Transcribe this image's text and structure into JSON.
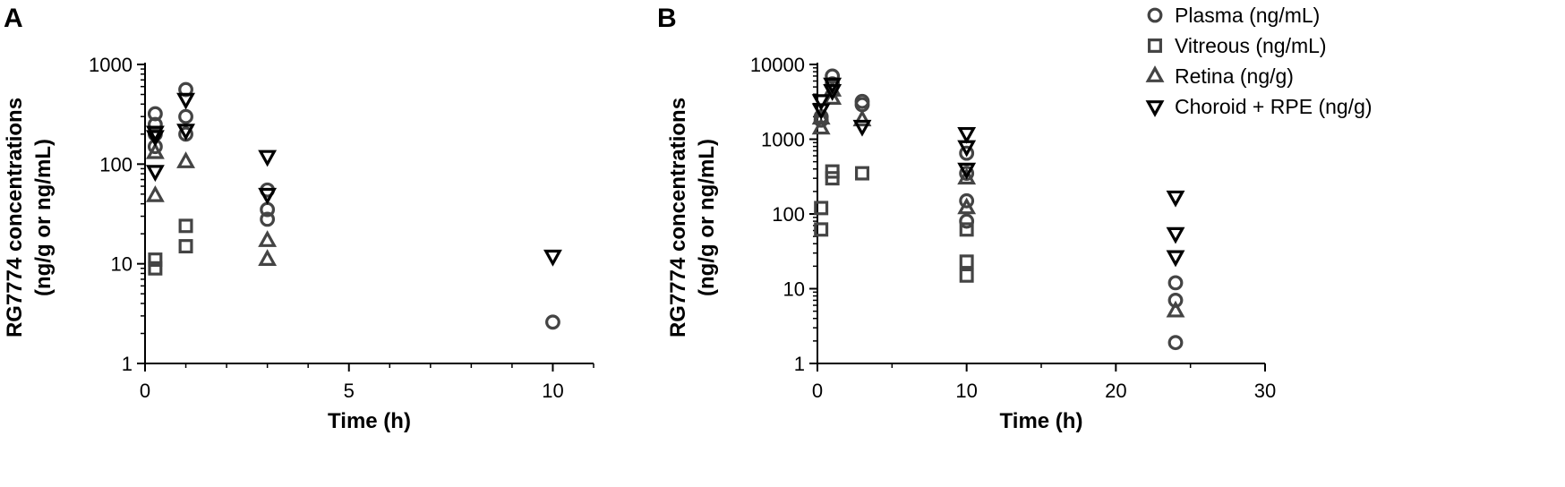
{
  "legend": [
    {
      "name": "Plasma (ng/mL)",
      "marker": "circle"
    },
    {
      "name": "Vitreous (ng/mL)",
      "marker": "square"
    },
    {
      "name": "Retina (ng/g)",
      "marker": "triangle-up"
    },
    {
      "name": "Choroid + RPE (ng/g)",
      "marker": "triangle-down"
    }
  ],
  "colors": {
    "circle": "#444444",
    "square": "#444444",
    "triangle-up": "#444444",
    "triangle-down": "#000000"
  },
  "chart_data": [
    {
      "panel": "A",
      "type": "scatter",
      "xlabel": "Time (h)",
      "ylabel_line1": "RG7774 concentrations",
      "ylabel_line2": "(ng/g or ng/mL)",
      "xlim": [
        0,
        11
      ],
      "ylim": [
        1,
        1000
      ],
      "yscale": "log",
      "xticks": [
        0,
        5,
        10
      ],
      "xticklabels": [
        "0",
        "5",
        "10"
      ],
      "yticks": [
        1,
        10,
        100,
        1000
      ],
      "yticklabels": [
        "1",
        "10",
        "100",
        "1000"
      ],
      "series": [
        {
          "marker": "circle",
          "x": [
            0.25,
            0.25,
            0.25,
            0.25,
            1,
            1,
            1,
            3,
            3,
            3,
            10
          ],
          "y": [
            320,
            250,
            200,
            150,
            560,
            300,
            200,
            55,
            35,
            28,
            2.6
          ]
        },
        {
          "marker": "square",
          "x": [
            0.25,
            0.25,
            1,
            1
          ],
          "y": [
            11,
            9,
            24,
            15
          ]
        },
        {
          "marker": "triangle-up",
          "x": [
            0.25,
            0.25,
            1,
            3,
            3
          ],
          "y": [
            130,
            48,
            105,
            17,
            11
          ]
        },
        {
          "marker": "triangle-down",
          "x": [
            0.25,
            0.25,
            0.25,
            1,
            1,
            3,
            3,
            10
          ],
          "y": [
            210,
            190,
            85,
            450,
            220,
            120,
            50,
            12
          ]
        }
      ]
    },
    {
      "panel": "B",
      "type": "scatter",
      "xlabel": "Time (h)",
      "ylabel_line1": "RG7774 concentrations",
      "ylabel_line2": "(ng/g or ng/mL)",
      "xlim": [
        0,
        30
      ],
      "ylim": [
        1,
        10000
      ],
      "yscale": "log",
      "xticks": [
        0,
        10,
        20,
        30
      ],
      "xticklabels": [
        "0",
        "10",
        "20",
        "30"
      ],
      "yticks": [
        1,
        10,
        100,
        1000,
        10000
      ],
      "yticklabels": [
        "1",
        "10",
        "100",
        "1000",
        "10000"
      ],
      "series": [
        {
          "marker": "circle",
          "x": [
            0.25,
            0.25,
            1,
            1,
            3,
            3,
            10,
            10,
            10,
            10,
            24,
            24,
            24
          ],
          "y": [
            2000,
            1800,
            7000,
            5500,
            3200,
            2900,
            650,
            350,
            150,
            80,
            12,
            7,
            1.9
          ]
        },
        {
          "marker": "square",
          "x": [
            0.25,
            0.25,
            1,
            1,
            3,
            10,
            10,
            10
          ],
          "y": [
            120,
            62,
            370,
            300,
            350,
            62,
            23,
            15
          ]
        },
        {
          "marker": "triangle-up",
          "x": [
            0.25,
            0.25,
            1,
            1,
            3,
            10,
            10,
            24
          ],
          "y": [
            1900,
            1400,
            4500,
            3500,
            1800,
            300,
            120,
            5
          ]
        },
        {
          "marker": "triangle-down",
          "x": [
            0.25,
            0.25,
            1,
            1,
            3,
            10,
            10,
            10,
            24,
            24,
            24
          ],
          "y": [
            3300,
            2500,
            5500,
            4500,
            1500,
            1200,
            800,
            400,
            170,
            55,
            27
          ]
        }
      ]
    }
  ]
}
